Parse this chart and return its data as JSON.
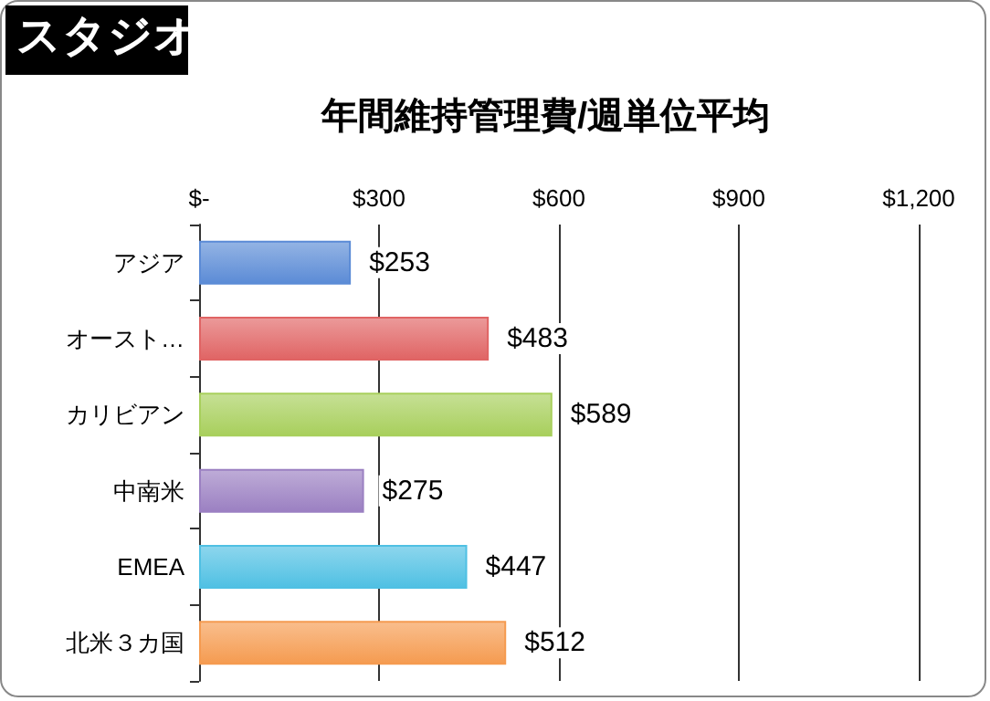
{
  "chart_data": {
    "type": "bar",
    "orientation": "horizontal",
    "title": "年間維持管理費/週単位平均",
    "annotations": [
      "スタジオ"
    ],
    "categories": [
      "アジア",
      "オースト…",
      "カリビアン",
      "中南米",
      "EMEA",
      "北米３カ国"
    ],
    "values": [
      253,
      483,
      589,
      275,
      447,
      512
    ],
    "colors": [
      "#5b8bd6",
      "#e06464",
      "#a8cf5c",
      "#9b80c2",
      "#4fc0e3",
      "#f59b50"
    ],
    "value_labels": [
      "$253",
      "$483",
      "$589",
      "$275",
      "$447",
      "$512"
    ],
    "xlim": [
      0,
      1200
    ],
    "xticks": [
      {
        "value": 0,
        "label": "$-"
      },
      {
        "value": 300,
        "label": "$300"
      },
      {
        "value": 600,
        "label": "$600"
      },
      {
        "value": 900,
        "label": "$900"
      },
      {
        "value": 1200,
        "label": "$1,200"
      }
    ],
    "grid": "x"
  }
}
